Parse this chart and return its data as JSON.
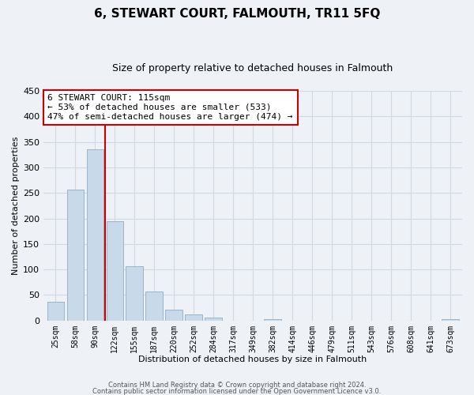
{
  "title": "6, STEWART COURT, FALMOUTH, TR11 5FQ",
  "subtitle": "Size of property relative to detached houses in Falmouth",
  "xlabel": "Distribution of detached houses by size in Falmouth",
  "ylabel": "Number of detached properties",
  "bar_labels": [
    "25sqm",
    "58sqm",
    "90sqm",
    "122sqm",
    "155sqm",
    "187sqm",
    "220sqm",
    "252sqm",
    "284sqm",
    "317sqm",
    "349sqm",
    "382sqm",
    "414sqm",
    "446sqm",
    "479sqm",
    "511sqm",
    "543sqm",
    "576sqm",
    "608sqm",
    "641sqm",
    "673sqm"
  ],
  "bar_heights": [
    36,
    256,
    336,
    195,
    106,
    57,
    21,
    12,
    6,
    0,
    0,
    2,
    0,
    0,
    0,
    0,
    0,
    0,
    0,
    0,
    2
  ],
  "bar_color": "#c8d9ea",
  "bar_edge_color": "#9ab5ca",
  "vline_x": 2.5,
  "vline_color": "#cc0000",
  "annotation_title": "6 STEWART COURT: 115sqm",
  "annotation_line1": "← 53% of detached houses are smaller (533)",
  "annotation_line2": "47% of semi-detached houses are larger (474) →",
  "annotation_box_color": "white",
  "annotation_box_edge": "#cc0000",
  "ylim": [
    0,
    450
  ],
  "yticks": [
    0,
    50,
    100,
    150,
    200,
    250,
    300,
    350,
    400,
    450
  ],
  "footer1": "Contains HM Land Registry data © Crown copyright and database right 2024.",
  "footer2": "Contains public sector information licensed under the Open Government Licence v3.0.",
  "bg_color": "#eef2f7",
  "grid_color": "#d0d8e4"
}
